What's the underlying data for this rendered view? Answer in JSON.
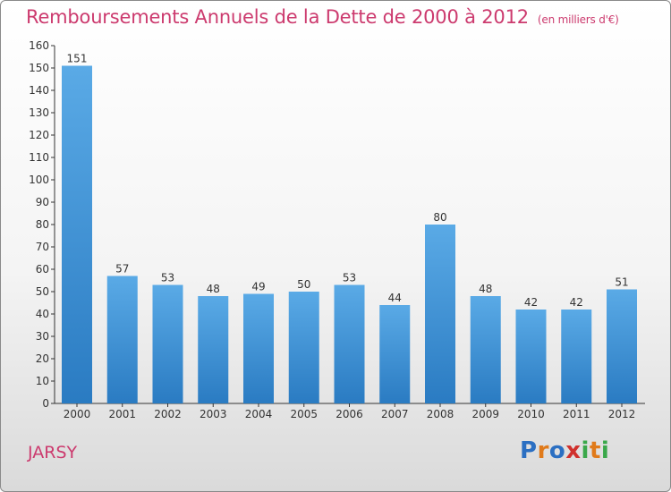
{
  "chart_data": {
    "type": "bar",
    "title": "Remboursements Annuels de la Dette de 2000 à 2012",
    "subtitle": "(en milliers d'€)",
    "categories": [
      "2000",
      "2001",
      "2002",
      "2003",
      "2004",
      "2005",
      "2006",
      "2007",
      "2008",
      "2009",
      "2010",
      "2011",
      "2012"
    ],
    "values": [
      151,
      57,
      53,
      48,
      49,
      50,
      53,
      44,
      80,
      48,
      42,
      42,
      51
    ],
    "value_labels": [
      "151",
      "57",
      "53",
      "48",
      "49",
      "50",
      "53",
      "44",
      "80",
      "48",
      "42",
      "42",
      "51"
    ],
    "ylim": [
      0,
      160
    ],
    "yticks": [
      0,
      10,
      20,
      30,
      40,
      50,
      60,
      70,
      80,
      90,
      100,
      110,
      120,
      130,
      140,
      150,
      160
    ],
    "ytick_labels": [
      "0",
      "10",
      "20",
      "30",
      "40",
      "50",
      "60",
      "70",
      "80",
      "90",
      "100",
      "110",
      "120",
      "130",
      "140",
      "150",
      "160"
    ],
    "xlabel": "",
    "ylabel": "",
    "grid": false,
    "bar_color": "#3d8fd6"
  },
  "commune": "JARSY",
  "logo": {
    "letters": [
      "P",
      "r",
      "o",
      "x",
      "i",
      "t",
      "i"
    ],
    "colors": [
      "#2b6fc2",
      "#e07a1a",
      "#2b6fc2",
      "#d0312d",
      "#3aa84a",
      "#e07a1a",
      "#3aa84a"
    ]
  }
}
